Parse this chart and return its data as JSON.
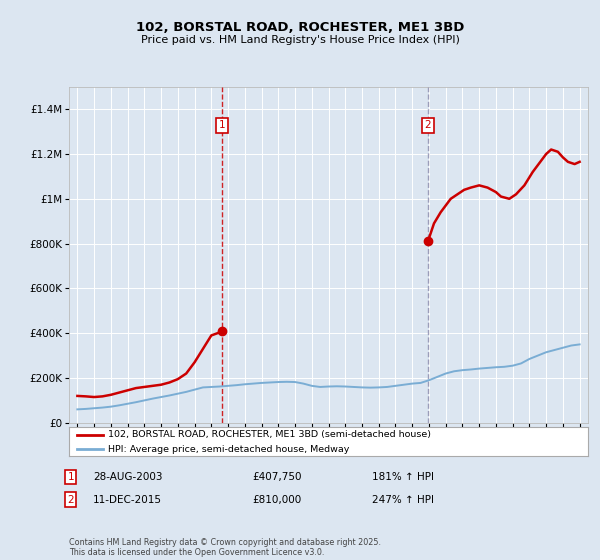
{
  "title": "102, BORSTAL ROAD, ROCHESTER, ME1 3BD",
  "subtitle": "Price paid vs. HM Land Registry's House Price Index (HPI)",
  "red_label": "102, BORSTAL ROAD, ROCHESTER, ME1 3BD (semi-detached house)",
  "blue_label": "HPI: Average price, semi-detached house, Medway",
  "footnote": "Contains HM Land Registry data © Crown copyright and database right 2025.\nThis data is licensed under the Open Government Licence v3.0.",
  "sale1_date": "28-AUG-2003",
  "sale1_price": "£407,750",
  "sale1_hpi": "181% ↑ HPI",
  "sale2_date": "11-DEC-2015",
  "sale2_price": "£810,000",
  "sale2_hpi": "247% ↑ HPI",
  "vline1_year": 2003.65,
  "vline2_year": 2015.94,
  "bg_color": "#dce6f1",
  "plot_bg": "#dce6f1",
  "red_color": "#cc0000",
  "blue_color": "#7aadd4",
  "ylim": [
    0,
    1500000
  ],
  "xlim": [
    1994.5,
    2025.5
  ],
  "yticks": [
    0,
    200000,
    400000,
    600000,
    800000,
    1000000,
    1200000,
    1400000
  ],
  "xticks": [
    1995,
    1996,
    1997,
    1998,
    1999,
    2000,
    2001,
    2002,
    2003,
    2004,
    2005,
    2006,
    2007,
    2008,
    2009,
    2010,
    2011,
    2012,
    2013,
    2014,
    2015,
    2016,
    2017,
    2018,
    2019,
    2020,
    2021,
    2022,
    2023,
    2024,
    2025
  ],
  "red_x": [
    1995.0,
    1995.5,
    1996.0,
    1996.5,
    1997.0,
    1997.5,
    1998.0,
    1998.5,
    1999.0,
    1999.5,
    2000.0,
    2000.5,
    2001.0,
    2001.5,
    2002.0,
    2002.5,
    2003.0,
    2003.65
  ],
  "red_y": [
    120000,
    118000,
    115000,
    118000,
    125000,
    135000,
    145000,
    155000,
    160000,
    165000,
    170000,
    180000,
    195000,
    220000,
    270000,
    330000,
    390000,
    407750
  ],
  "red_x2": [
    2015.94,
    2016.3,
    2016.7,
    2017.0,
    2017.3,
    2017.7,
    2018.1,
    2018.5,
    2019.0,
    2019.5,
    2020.0,
    2020.3,
    2020.8,
    2021.2,
    2021.7,
    2022.2,
    2022.7,
    2023.0,
    2023.3,
    2023.7,
    2024.0,
    2024.3,
    2024.7,
    2025.0
  ],
  "red_y2": [
    810000,
    890000,
    940000,
    970000,
    1000000,
    1020000,
    1040000,
    1050000,
    1060000,
    1050000,
    1030000,
    1010000,
    1000000,
    1020000,
    1060000,
    1120000,
    1170000,
    1200000,
    1220000,
    1210000,
    1185000,
    1165000,
    1155000,
    1165000
  ],
  "blue_x": [
    1995.0,
    1995.5,
    1996.0,
    1996.5,
    1997.0,
    1997.5,
    1998.0,
    1998.5,
    1999.0,
    1999.5,
    2000.0,
    2000.5,
    2001.0,
    2001.5,
    2002.0,
    2002.5,
    2003.0,
    2003.5,
    2004.0,
    2004.5,
    2005.0,
    2005.5,
    2006.0,
    2006.5,
    2007.0,
    2007.5,
    2008.0,
    2008.5,
    2009.0,
    2009.5,
    2010.0,
    2010.5,
    2011.0,
    2011.5,
    2012.0,
    2012.5,
    2013.0,
    2013.5,
    2014.0,
    2014.5,
    2015.0,
    2015.5,
    2016.0,
    2016.5,
    2017.0,
    2017.5,
    2018.0,
    2018.5,
    2019.0,
    2019.5,
    2020.0,
    2020.5,
    2021.0,
    2021.5,
    2022.0,
    2022.5,
    2023.0,
    2023.5,
    2024.0,
    2024.5,
    2025.0
  ],
  "blue_y": [
    60000,
    62000,
    65000,
    68000,
    72000,
    78000,
    85000,
    92000,
    100000,
    108000,
    115000,
    122000,
    130000,
    138000,
    148000,
    158000,
    160000,
    162000,
    165000,
    168000,
    172000,
    175000,
    178000,
    180000,
    182000,
    183000,
    182000,
    175000,
    165000,
    160000,
    162000,
    163000,
    162000,
    160000,
    158000,
    157000,
    158000,
    160000,
    165000,
    170000,
    175000,
    178000,
    190000,
    205000,
    220000,
    230000,
    235000,
    238000,
    242000,
    245000,
    248000,
    250000,
    255000,
    265000,
    285000,
    300000,
    315000,
    325000,
    335000,
    345000,
    350000
  ],
  "marker1_x": 2003.65,
  "marker1_y": 407750,
  "marker2_x": 2015.94,
  "marker2_y": 810000
}
